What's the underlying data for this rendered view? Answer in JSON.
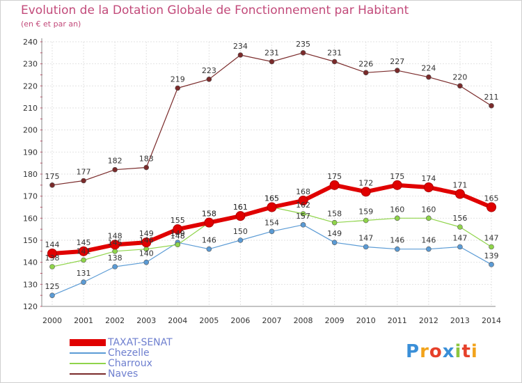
{
  "chart_data": {
    "type": "line",
    "title": "Evolution de la Dotation Globale de Fonctionnement par Habitant",
    "subtitle": "(en € et par an)",
    "xlabel": "",
    "ylabel": "",
    "ylim": [
      120,
      240
    ],
    "yticks": [
      120,
      130,
      140,
      150,
      160,
      170,
      180,
      190,
      200,
      210,
      220,
      230,
      240
    ],
    "grid": true,
    "legend_position": "bottom-left",
    "categories": [
      "2000",
      "2001",
      "2002",
      "2003",
      "2004",
      "2005",
      "2006",
      "2007",
      "2008",
      "2009",
      "2010",
      "2011",
      "2012",
      "2013",
      "2014"
    ],
    "series": [
      {
        "name": "TAXAT-SENAT",
        "color": "#e00000",
        "style": "thick",
        "values": [
          144,
          145,
          148,
          149,
          155,
          158,
          161,
          165,
          168,
          175,
          172,
          175,
          174,
          171,
          165
        ]
      },
      {
        "name": "Chezelle",
        "color": "#5b9bd5",
        "style": "thin",
        "values": [
          125,
          131,
          138,
          140,
          149,
          146,
          150,
          154,
          157,
          149,
          147,
          146,
          146,
          147,
          139
        ]
      },
      {
        "name": "Charroux",
        "color": "#8fd44a",
        "style": "thin",
        "values": [
          138,
          141,
          145,
          146,
          148,
          158,
          161,
          165,
          162,
          158,
          159,
          160,
          160,
          156,
          147
        ]
      },
      {
        "name": "Naves",
        "color": "#7a2a2a",
        "style": "thin",
        "values": [
          175,
          177,
          182,
          183,
          219,
          223,
          234,
          231,
          235,
          231,
          226,
          227,
          224,
          220,
          211
        ]
      }
    ]
  },
  "logo": {
    "text": "Proxiti"
  }
}
